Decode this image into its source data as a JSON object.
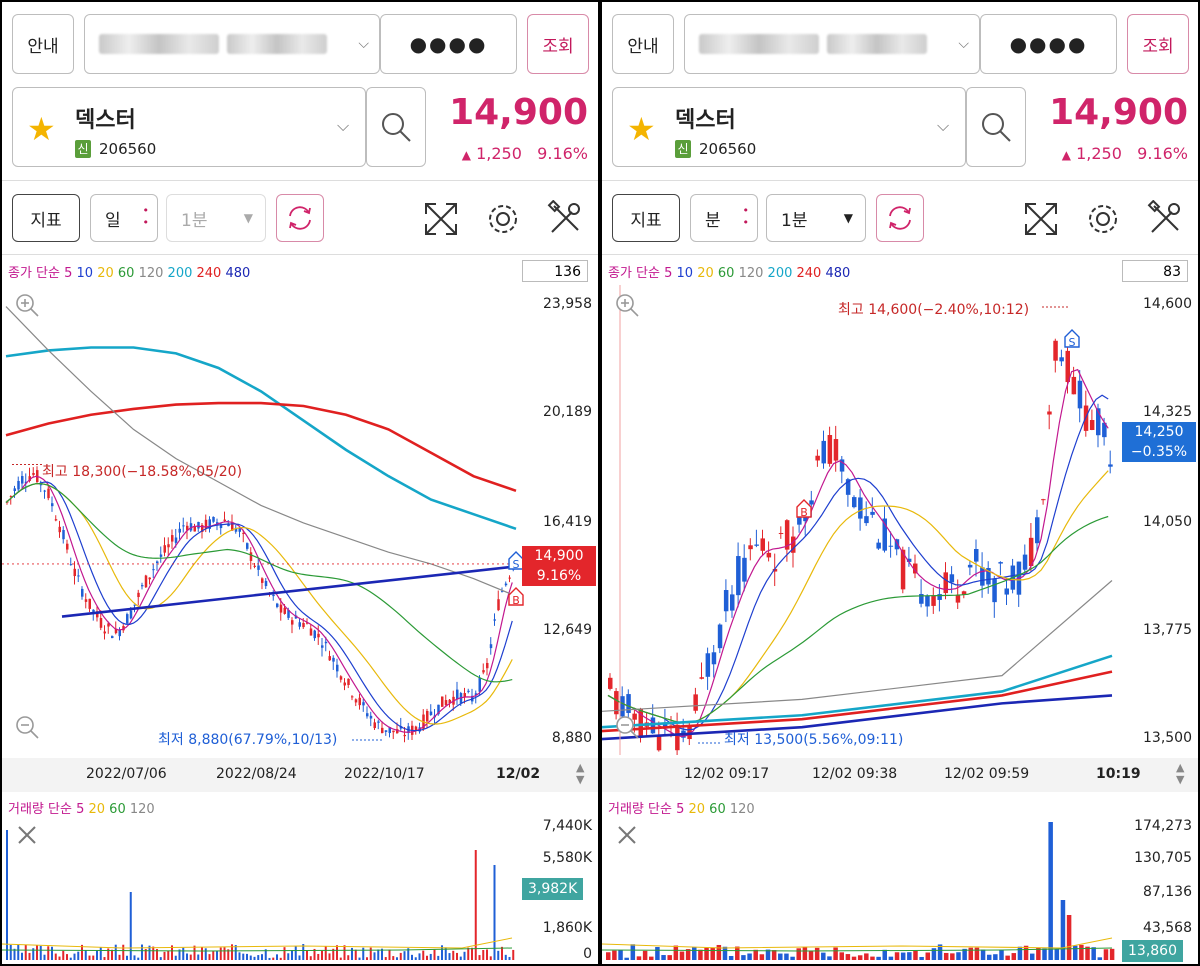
{
  "left": {
    "toolbar": {
      "guide": "안내",
      "password": "●●●●",
      "query": "조회"
    },
    "stock": {
      "name": "덱스터",
      "tag": "신",
      "code": "206560",
      "price": "14,900",
      "change": "1,250",
      "rate": "9.16%"
    },
    "controls": {
      "indicator": "지표",
      "period": "일",
      "interval": "1분"
    },
    "ma_legend": {
      "label": "종가 단순",
      "periods": [
        "5",
        "10",
        "20",
        "60",
        "120",
        "200",
        "240",
        "480"
      ]
    },
    "count": "136",
    "y_ticks": [
      "23,958",
      "20,189",
      "16,419",
      "12,649",
      "8,880"
    ],
    "current_tag": {
      "price": "14,900",
      "rate": "9.16%"
    },
    "high_label": "최고 18,300(−18.58%,05/20)",
    "low_label": "최저 8,880(67.79%,10/13)",
    "x_dates": [
      "2022/07/06",
      "2022/08/24",
      "2022/10/17"
    ],
    "x_last": "12/02",
    "volume": {
      "legend_label": "거래량 단순",
      "periods": [
        "5",
        "20",
        "60",
        "120"
      ],
      "ticks": [
        "7,440K",
        "5,580K",
        "1,860K",
        "0"
      ],
      "current": "3,982K"
    },
    "markers": {
      "b": "B",
      "s": "S"
    }
  },
  "right": {
    "toolbar": {
      "guide": "안내",
      "password": "●●●●",
      "query": "조회"
    },
    "stock": {
      "name": "덱스터",
      "tag": "신",
      "code": "206560",
      "price": "14,900",
      "change": "1,250",
      "rate": "9.16%"
    },
    "controls": {
      "indicator": "지표",
      "period": "분",
      "interval": "1분"
    },
    "ma_legend": {
      "label": "종가 단순",
      "periods": [
        "5",
        "10",
        "20",
        "60",
        "120",
        "200",
        "240",
        "480"
      ]
    },
    "count": "83",
    "y_ticks": [
      "14,600",
      "14,325",
      "14,050",
      "13,775",
      "13,500"
    ],
    "current_tag": {
      "price": "14,250",
      "rate": "−0.35%"
    },
    "high_label": "최고 14,600(−2.40%,10:12)",
    "low_label": "최저 13,500(5.56%,09:11)",
    "x_dates": [
      "12/02 09:17",
      "12/02 09:38",
      "12/02 09:59"
    ],
    "x_last": "10:19",
    "volume": {
      "legend_label": "거래량 단순",
      "periods": [
        "5",
        "20",
        "60",
        "120"
      ],
      "ticks": [
        "174,273",
        "130,705",
        "87,136",
        "43,568"
      ],
      "current": "13,860"
    },
    "markers": {
      "b": "B",
      "s": "S"
    }
  },
  "colors": {
    "up": "#e3262b",
    "down": "#1f5fd6",
    "ma5": "#c2188f",
    "ma10": "#1e3fcf",
    "ma20": "#e8b90b",
    "ma60": "#2b9a36",
    "ma120": "#888888",
    "ma200": "#15a6c8",
    "ma240": "#e02020",
    "ma480": "#1b27b4",
    "accent": "#d0246a"
  }
}
